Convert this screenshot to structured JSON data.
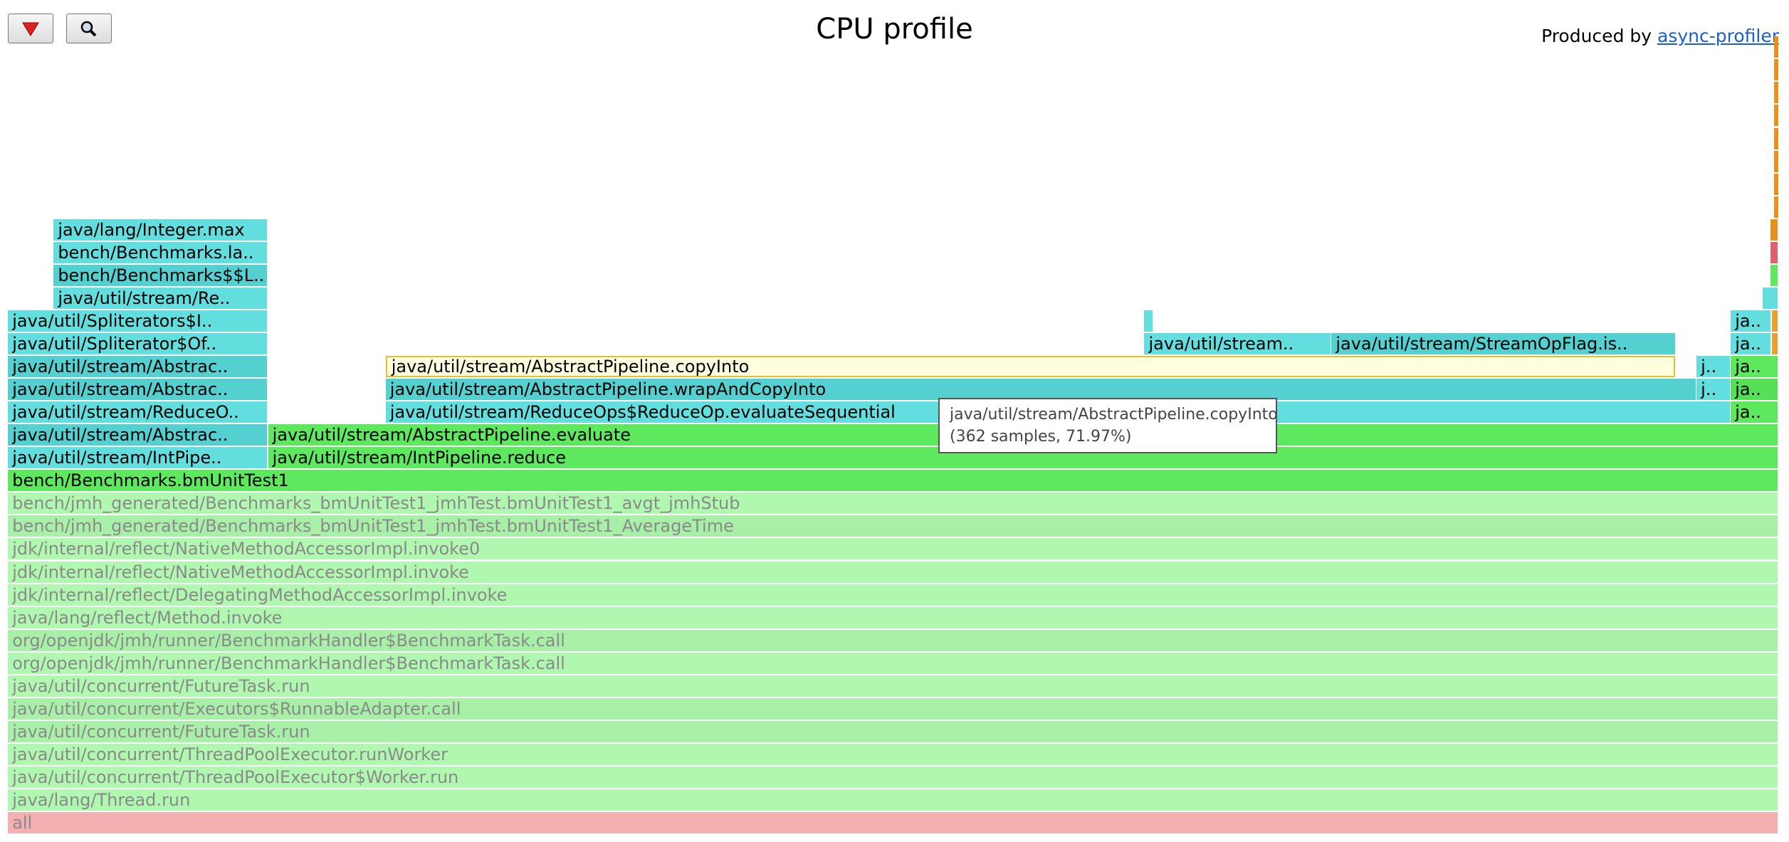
{
  "header": {
    "title": "CPU profile",
    "produced_by": "Produced by",
    "link": "async-profiler"
  },
  "frames": [
    "all",
    "java/lang/Thread.run",
    "java/util/concurrent/ThreadPoolExecutor$Worker.run",
    "java/util/concurrent/ThreadPoolExecutor.runWorker",
    "java/util/concurrent/FutureTask.run",
    "java/util/concurrent/Executors$RunnableAdapter.call",
    "java/util/concurrent/FutureTask.run",
    "org/openjdk/jmh/runner/BenchmarkHandler$BenchmarkTask.call",
    "org/openjdk/jmh/runner/BenchmarkHandler$BenchmarkTask.call",
    "java/lang/reflect/Method.invoke",
    "jdk/internal/reflect/DelegatingMethodAccessorImpl.invoke",
    "jdk/internal/reflect/NativeMethodAccessorImpl.invoke",
    "jdk/internal/reflect/NativeMethodAccessorImpl.invoke0",
    "bench/jmh_generated/Benchmarks_bmUnitTest1_jmhTest.bmUnitTest1_AverageTime",
    "bench/jmh_generated/Benchmarks_bmUnitTest1_jmhTest.bmUnitTest1_avgt_jmhStub",
    "bench/Benchmarks.bmUnitTest1",
    "java/util/stream/IntPipe..",
    "java/util/stream/IntPipeline.reduce",
    "java/util/stream/Abstrac..",
    "java/util/stream/AbstractPipeline.evaluate",
    "java/util/stream/ReduceO..",
    "java/util/stream/ReduceOps$ReduceOp.evaluateSequential",
    "ja..",
    "java/util/stream/Abstrac..",
    "java/util/stream/AbstractPipeline.wrapAndCopyInto",
    "j..",
    "ja..",
    "java/util/stream/Abstrac..",
    "java/util/stream/AbstractPipeline.copyInto",
    "j..",
    "ja..",
    "java/util/Spliterator$Of..",
    "java/util/stream..",
    "java/util/stream/StreamOpFlag.is..",
    "ja..",
    "java/util/Spliterators$I..",
    "ja..",
    "java/util/stream/Re..",
    "bench/Benchmarks$$L..",
    "bench/Benchmarks.la..",
    "java/lang/Integer.max"
  ],
  "tooltip": {
    "line1": "java/util/stream/AbstractPipeline.copyInto",
    "line2": "(362 samples, 71.97%)"
  }
}
